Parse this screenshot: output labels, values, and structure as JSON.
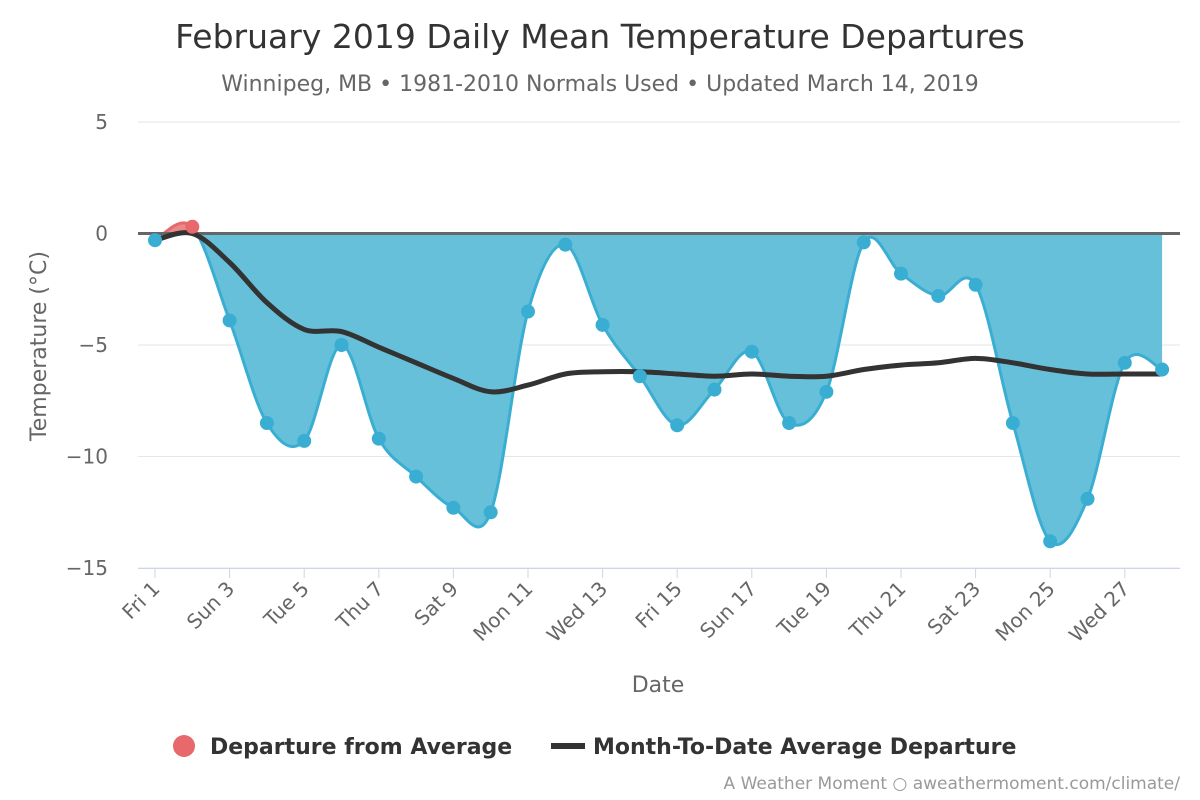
{
  "title": "February 2019 Daily Mean Temperature Departures",
  "subtitle": "Winnipeg, MB • 1981-2010 Normals Used • Updated March 14, 2019",
  "credits": "A Weather Moment ○ aweathermoment.com/climate/",
  "colors": {
    "below": "#3aaed2",
    "below_fill": "#67c0d9",
    "above": "#e8696b",
    "mtd_line": "#333333",
    "zero_line": "#666666",
    "grid": "#e6e6e6"
  },
  "legend": {
    "departure_label": "Departure from Average",
    "mtd_label": "Month-To-Date Average Departure"
  },
  "chart_data": {
    "type": "area",
    "xlabel": "Date",
    "ylabel": "Temperature (°C)",
    "ylim": [
      -15,
      5
    ],
    "yticks": [
      5,
      0,
      -5,
      -10,
      -15
    ],
    "grid": true,
    "legend_position": "bottom",
    "x": [
      "Fri 1",
      "Sat 2",
      "Sun 3",
      "Mon 4",
      "Tue 5",
      "Wed 6",
      "Thu 7",
      "Fri 8",
      "Sat 9",
      "Sun 10",
      "Mon 11",
      "Tue 12",
      "Wed 13",
      "Thu 14",
      "Fri 15",
      "Sat 16",
      "Sun 17",
      "Mon 18",
      "Tue 19",
      "Wed 20",
      "Thu 21",
      "Fri 22",
      "Sat 23",
      "Sun 24",
      "Mon 25",
      "Tue 26",
      "Wed 27",
      "Thu 28"
    ],
    "x_tick_labels": [
      "Fri 1",
      "Sun 3",
      "Tue 5",
      "Thu 7",
      "Sat 9",
      "Mon 11",
      "Wed 13",
      "Fri 15",
      "Sun 17",
      "Tue 19",
      "Thu 21",
      "Sat 23",
      "Mon 25",
      "Wed 27"
    ],
    "series": [
      {
        "name": "Departure from Average",
        "values": [
          -0.3,
          0.3,
          -3.9,
          -8.5,
          -9.3,
          -5.0,
          -9.2,
          -10.9,
          -12.3,
          -12.5,
          -3.5,
          -0.5,
          -4.1,
          -6.4,
          -8.6,
          -7.0,
          -5.3,
          -8.5,
          -7.1,
          -0.4,
          -1.8,
          -2.8,
          -2.3,
          -8.5,
          -13.8,
          -11.9,
          -5.8,
          -6.1
        ]
      },
      {
        "name": "Month-To-Date Average Departure",
        "values": [
          -0.3,
          0.0,
          -1.3,
          -3.1,
          -4.3,
          -4.4,
          -5.1,
          -5.8,
          -6.5,
          -7.1,
          -6.8,
          -6.3,
          -6.2,
          -6.2,
          -6.3,
          -6.4,
          -6.3,
          -6.4,
          -6.4,
          -6.1,
          -5.9,
          -5.8,
          -5.6,
          -5.8,
          -6.1,
          -6.3,
          -6.3,
          -6.3
        ]
      }
    ]
  }
}
